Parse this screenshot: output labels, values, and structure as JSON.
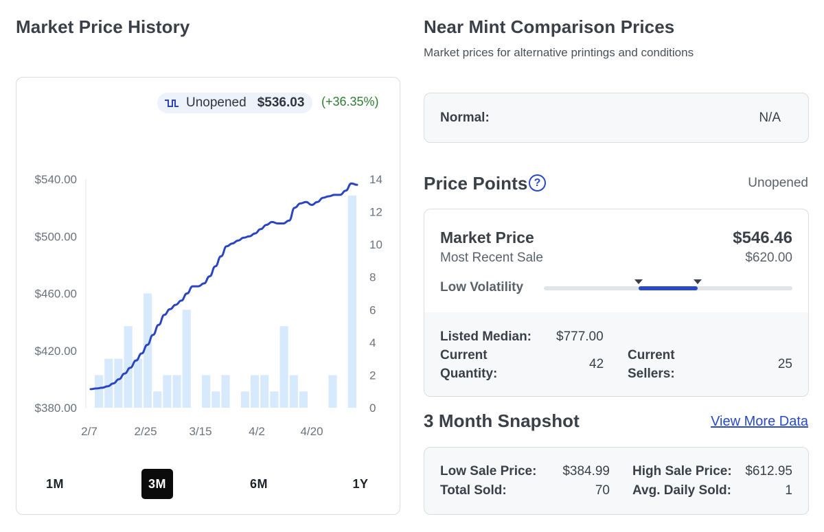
{
  "left": {
    "title": "Market Price History",
    "legend": {
      "label": "Unopened",
      "value": "$536.03",
      "change": "(+36.35%)"
    },
    "ranges": [
      {
        "label": "1M",
        "active": false
      },
      {
        "label": "3M",
        "active": true
      },
      {
        "label": "6M",
        "active": false
      },
      {
        "label": "1Y",
        "active": false
      }
    ]
  },
  "chart_data": {
    "type": "line",
    "title": "",
    "xlabel": "",
    "ylabel": "",
    "x_tick_labels": [
      "2/7",
      "2/25",
      "3/15",
      "4/2",
      "4/20"
    ],
    "y_left": {
      "ticks": [
        380,
        420,
        460,
        500,
        540
      ],
      "tick_labels": [
        "$380.00",
        "$420.00",
        "$460.00",
        "$500.00",
        "$540.00"
      ],
      "range": [
        380,
        540
      ]
    },
    "y_right": {
      "ticks": [
        0,
        2,
        4,
        6,
        8,
        10,
        12,
        14
      ],
      "tick_labels": [
        "0",
        "2",
        "4",
        "6",
        "8",
        "10",
        "12",
        "14"
      ],
      "range": [
        0,
        14
      ]
    },
    "grid": false,
    "price_series": {
      "name": "Unopened",
      "color": "#2a44c2",
      "values": [
        393,
        393.5,
        394,
        395,
        397,
        400,
        404,
        408,
        413,
        418,
        424,
        431,
        438,
        445,
        449,
        452,
        455,
        460,
        465,
        465,
        467,
        472,
        479,
        486,
        493,
        495,
        497,
        499,
        500,
        502,
        505,
        508,
        510,
        509,
        509,
        511,
        520,
        523,
        524,
        522,
        524,
        527,
        528,
        529,
        529,
        532,
        537,
        536
      ]
    },
    "volume_series": {
      "color": "#d7eafd",
      "values": [
        2,
        3,
        3,
        5,
        3,
        7,
        1,
        2,
        2,
        6,
        0,
        2,
        1,
        2,
        0,
        1,
        2,
        2,
        1,
        5,
        2,
        1,
        0,
        0,
        2,
        0,
        13
      ]
    }
  },
  "right": {
    "comparison": {
      "title": "Near Mint Comparison Prices",
      "subtitle": "Market prices for alternative printings and conditions",
      "normal_label": "Normal:",
      "normal_value": "N/A"
    },
    "price_points": {
      "title": "Price Points",
      "help_icon": "?",
      "variant": "Unopened",
      "market_price_label": "Market Price",
      "market_price_value": "$546.46",
      "recent_sale_label": "Most Recent Sale",
      "recent_sale_value": "$620.00",
      "volatility_label": "Low Volatility",
      "volatility_band": [
        0.38,
        0.62
      ],
      "listed_median_label": "Listed Median:",
      "listed_median_value": "$777.00",
      "current_quantity_label_1": "Current",
      "current_quantity_label_2": "Quantity:",
      "current_quantity_value": "42",
      "current_sellers_label_1": "Current",
      "current_sellers_label_2": "Sellers:",
      "current_sellers_value": "25"
    },
    "snapshot": {
      "title": "3 Month Snapshot",
      "link": "View More Data",
      "low_sale_label": "Low Sale Price:",
      "low_sale_value": "$384.99",
      "high_sale_label": "High Sale Price:",
      "high_sale_value": "$612.95",
      "total_sold_label": "Total Sold:",
      "total_sold_value": "70",
      "avg_daily_label": "Avg. Daily Sold:",
      "avg_daily_value": "1"
    }
  }
}
